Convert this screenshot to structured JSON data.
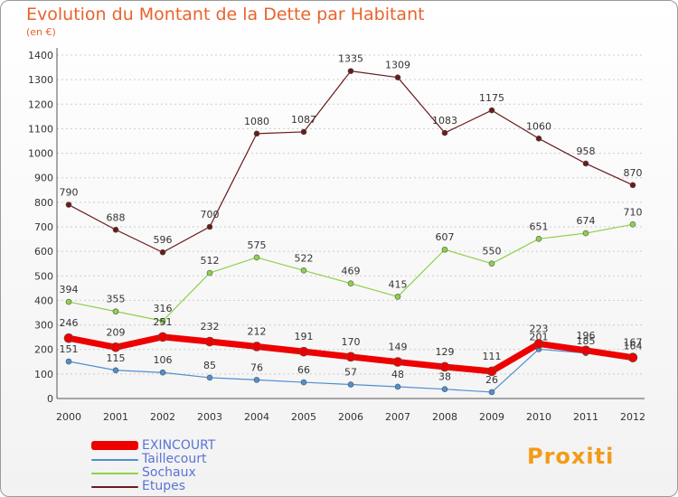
{
  "title": "Evolution du Montant de la Dette par Habitant",
  "subtitle": "(en €)",
  "logo": "Proxiti",
  "colors": {
    "exincourt": "#ee0000",
    "taillecourt": "#4f8fcf",
    "sochaux": "#8ed14a",
    "etupes": "#6b1a1a",
    "grid": "#cccccc",
    "title": "#e8632d",
    "legend_text": "#5a74d6"
  },
  "chart_data": {
    "type": "line",
    "x": [
      2000,
      2001,
      2002,
      2003,
      2004,
      2005,
      2006,
      2007,
      2008,
      2009,
      2010,
      2011,
      2012
    ],
    "ylim": [
      0,
      1400
    ],
    "yticks": [
      0,
      100,
      200,
      300,
      400,
      500,
      600,
      700,
      800,
      900,
      1000,
      1100,
      1200,
      1300,
      1400
    ],
    "grid": true,
    "legend_position": "bottom-left",
    "series": [
      {
        "name": "Etupes",
        "values": [
          790,
          688,
          596,
          700,
          1080,
          1087,
          1335,
          1309,
          1083,
          1175,
          1060,
          958,
          870
        ]
      },
      {
        "name": "Sochaux",
        "values": [
          394,
          355,
          316,
          512,
          575,
          522,
          469,
          415,
          607,
          550,
          651,
          674,
          710
        ]
      },
      {
        "name": "Taillecourt",
        "values": [
          151,
          115,
          106,
          85,
          76,
          66,
          57,
          48,
          38,
          26,
          201,
          185,
          164
        ]
      },
      {
        "name": "EXINCOURT",
        "values": [
          246,
          209,
          251,
          232,
          212,
          191,
          170,
          149,
          129,
          111,
          223,
          196,
          167
        ]
      }
    ]
  },
  "legend": [
    {
      "label": "EXINCOURT"
    },
    {
      "label": "Taillecourt"
    },
    {
      "label": "Sochaux"
    },
    {
      "label": "Etupes"
    }
  ]
}
